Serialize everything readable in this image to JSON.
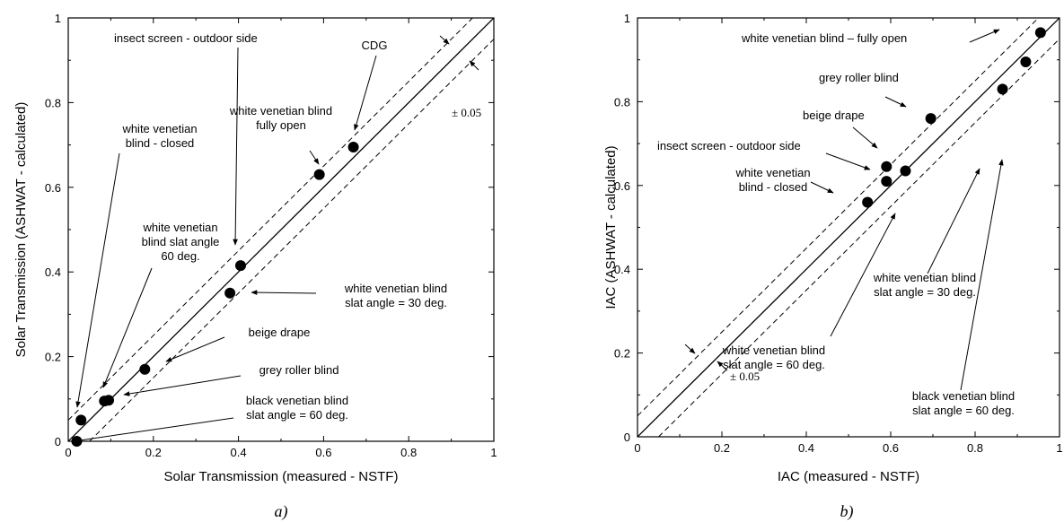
{
  "chart_data": [
    {
      "type": "scatter",
      "subplot_label": "a)",
      "xlabel": "Solar Transmission (measured - NSTF)",
      "ylabel": "Solar Transmission (ASHWAT - calculated)",
      "xlim": [
        0,
        1
      ],
      "ylim": [
        0,
        1
      ],
      "xticks": [
        "0",
        "0.2",
        "0.4",
        "0.6",
        "0.8",
        "1"
      ],
      "yticks": [
        "0",
        "0.2",
        "0.4",
        "0.6",
        "0.8",
        "1"
      ],
      "tolerance_label": "± 0.05",
      "points": [
        {
          "x": 0.02,
          "y": 0.0
        },
        {
          "x": 0.03,
          "y": 0.05
        },
        {
          "x": 0.085,
          "y": 0.095
        },
        {
          "x": 0.095,
          "y": 0.097
        },
        {
          "x": 0.18,
          "y": 0.17
        },
        {
          "x": 0.38,
          "y": 0.35
        },
        {
          "x": 0.405,
          "y": 0.415
        },
        {
          "x": 0.59,
          "y": 0.63
        },
        {
          "x": 0.67,
          "y": 0.695
        }
      ],
      "annotations": [
        {
          "lines": [
            "insect screen - outdoor side"
          ]
        },
        {
          "lines": [
            "CDG"
          ]
        },
        {
          "lines": [
            "white venetian blind",
            "fully open"
          ]
        },
        {
          "lines": [
            "white venetian",
            "blind - closed"
          ]
        },
        {
          "lines": [
            "white venetian",
            "blind slat angle",
            "60 deg."
          ]
        },
        {
          "lines": [
            "white venetian blind",
            "slat angle = 30 deg."
          ]
        },
        {
          "lines": [
            "beige drape"
          ]
        },
        {
          "lines": [
            "grey roller blind"
          ]
        },
        {
          "lines": [
            "black venetian blind",
            "slat angle = 60 deg."
          ]
        }
      ]
    },
    {
      "type": "scatter",
      "subplot_label": "b)",
      "xlabel": "IAC (measured - NSTF)",
      "ylabel": "IAC (ASHWAT - calculated)",
      "xlim": [
        0,
        1
      ],
      "ylim": [
        0,
        1
      ],
      "xticks": [
        "0",
        "0.2",
        "0.4",
        "0.6",
        "0.8",
        "1"
      ],
      "yticks": [
        "0",
        "0.2",
        "0.4",
        "0.6",
        "0.8",
        "1"
      ],
      "tolerance_label": "± 0.05",
      "points": [
        {
          "x": 0.545,
          "y": 0.56
        },
        {
          "x": 0.59,
          "y": 0.61
        },
        {
          "x": 0.59,
          "y": 0.645
        },
        {
          "x": 0.635,
          "y": 0.635
        },
        {
          "x": 0.695,
          "y": 0.76
        },
        {
          "x": 0.865,
          "y": 0.83
        },
        {
          "x": 0.92,
          "y": 0.895
        },
        {
          "x": 0.955,
          "y": 0.965
        }
      ],
      "annotations": [
        {
          "lines": [
            "white venetian blind – fully open"
          ]
        },
        {
          "lines": [
            "grey roller blind"
          ]
        },
        {
          "lines": [
            "beige drape"
          ]
        },
        {
          "lines": [
            "insect screen - outdoor side"
          ]
        },
        {
          "lines": [
            "white venetian",
            "blind - closed"
          ]
        },
        {
          "lines": [
            "white venetian blind",
            "slat angle = 30 deg."
          ]
        },
        {
          "lines": [
            "white venetian blind",
            "slat angle = 60 deg."
          ]
        },
        {
          "lines": [
            "black venetian blind",
            "slat angle = 60 deg."
          ]
        }
      ]
    }
  ]
}
